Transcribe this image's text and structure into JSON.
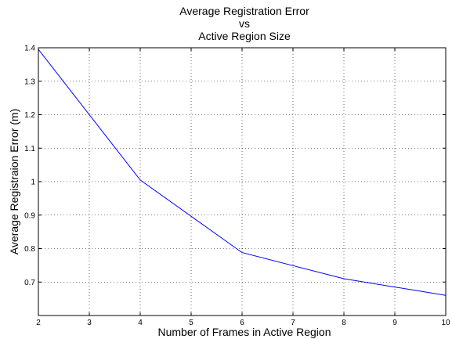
{
  "chart_data": {
    "type": "line",
    "title_lines": [
      "Average Registration Error",
      "vs",
      "Active Region Size"
    ],
    "xlabel": "Number of Frames in Active Region",
    "ylabel": "Average Registraion Error (m)",
    "xlim": [
      2,
      10
    ],
    "ylim": [
      0.6,
      1.4
    ],
    "x_ticks": [
      "2",
      "3",
      "4",
      "5",
      "6",
      "7",
      "8",
      "9",
      "10"
    ],
    "y_ticks": [
      "0.7",
      "0.8",
      "0.9",
      "1",
      "1.1",
      "1.2",
      "1.3",
      "1.4"
    ],
    "grid": true,
    "grid_style": "dotted",
    "series": [
      {
        "color": "#0000ff",
        "x": [
          2,
          4,
          6,
          8,
          10
        ],
        "y": [
          1.395,
          1.005,
          0.788,
          0.71,
          0.66
        ]
      }
    ]
  }
}
